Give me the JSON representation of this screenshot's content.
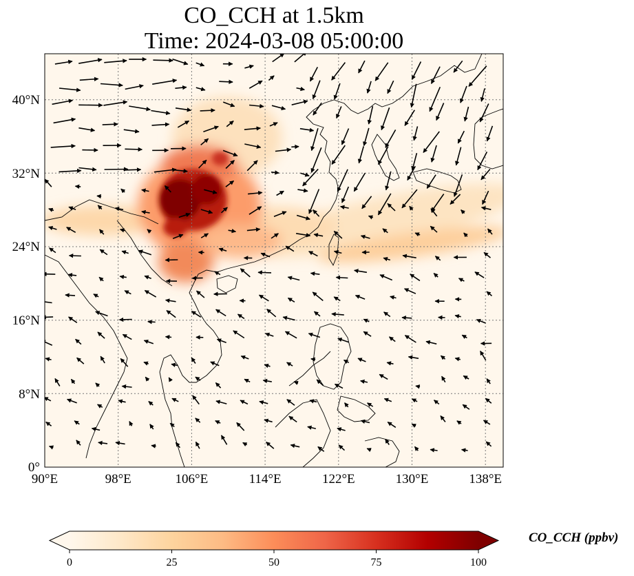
{
  "title": {
    "line1": "CO_CCH at 1.5km",
    "line2": "Time: 2024-03-08 05:00:00"
  },
  "map": {
    "variable": "CO_CCH",
    "level": "1.5km",
    "time": "2024-03-08 05:00:00",
    "projection": "PlateCarree",
    "lon_range": [
      90,
      139
    ],
    "lat_range": [
      0,
      45
    ],
    "lon_ticks": [
      90,
      98,
      106,
      114,
      122,
      130,
      138
    ],
    "lat_ticks": [
      0,
      8,
      16,
      24,
      32,
      40
    ],
    "lon_tick_labels": [
      "90°E",
      "98°E",
      "106°E",
      "114°E",
      "122°E",
      "130°E",
      "138°E"
    ],
    "lat_tick_labels": [
      "0°",
      "8°N",
      "16°N",
      "24°N",
      "32°N",
      "40°N"
    ],
    "gridlines": "dotted",
    "overlay": "wind vectors (black arrows)"
  },
  "colorbar": {
    "label": "CO_CCH (ppbv)",
    "colormap": "OrRd",
    "range": [
      0,
      100
    ],
    "ticks": [
      0,
      25,
      50,
      75,
      100
    ],
    "tick_labels": [
      "0",
      "25",
      "50",
      "75",
      "100"
    ],
    "extend": "both",
    "colors": [
      "#fff7ec",
      "#fee8c8",
      "#fdd49e",
      "#fdbb84",
      "#fc8d59",
      "#ef6548",
      "#d7301f",
      "#b30000",
      "#7f0000"
    ]
  }
}
